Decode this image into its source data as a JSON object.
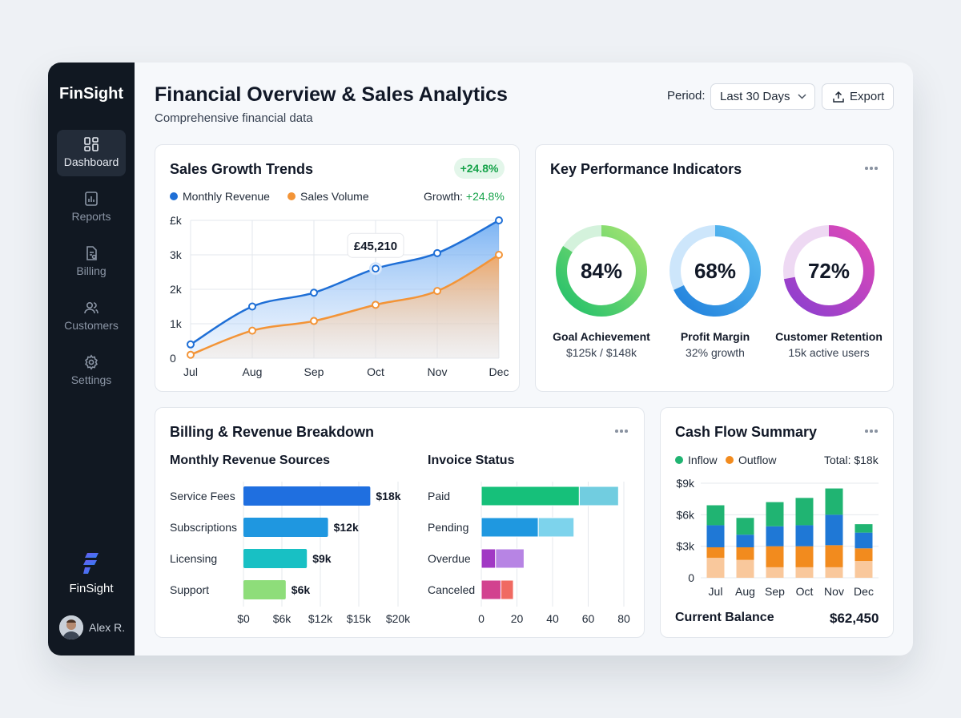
{
  "sidebar": {
    "brand": "FinSight",
    "items": [
      {
        "label": "Dashboard",
        "icon": "dashboard-icon",
        "active": true
      },
      {
        "label": "Reports",
        "icon": "reports-icon"
      },
      {
        "label": "Billing",
        "icon": "billing-icon"
      },
      {
        "label": "Customers",
        "icon": "customers-icon"
      },
      {
        "label": "Settings",
        "icon": "settings-icon"
      }
    ],
    "brand_bottom": "FinSight",
    "user_name": "Alex R."
  },
  "header": {
    "title": "Financial Overview & Sales Analytics",
    "subtitle": "Comprehensive financial data",
    "period_label": "Period:",
    "period_value": "Last 30 Days",
    "export_label": "Export"
  },
  "colors": {
    "revenue": "#1f6fd6",
    "volume": "#f39437",
    "positive": "#16a34a",
    "inflow": "#20b472",
    "outflow": "#f28b1e"
  },
  "sales_growth": {
    "title": "Sales Growth Trends",
    "badge": "+24.8%",
    "legend": [
      "Monthly Revenue",
      "Sales Volume"
    ],
    "growth_label": "Growth:",
    "growth_value": "+24.8%",
    "tooltip": "£45,210",
    "chart_data": {
      "type": "area",
      "categories": [
        "Jul",
        "Aug",
        "Sep",
        "Oct",
        "Nov",
        "Dec"
      ],
      "y_ticks": [
        "0",
        "1k",
        "2k",
        "3k",
        "£k"
      ],
      "ylim": [
        0,
        4
      ],
      "grid": true,
      "series": [
        {
          "name": "Monthly Revenue",
          "values": [
            0.4,
            1.5,
            1.9,
            2.6,
            3.05,
            4.0
          ]
        },
        {
          "name": "Sales Volume",
          "values": [
            0.1,
            0.8,
            1.08,
            1.55,
            1.95,
            3.0
          ]
        }
      ]
    }
  },
  "kpi": {
    "title": "Key Performance Indicators",
    "items": [
      {
        "value": "84%",
        "pct": 84,
        "label": "Goal Achievement",
        "sub": "$125k / $148k",
        "track": "#d4f2dc",
        "c1": "#1fbf6a",
        "c2": "#a6e572"
      },
      {
        "value": "68%",
        "pct": 68,
        "label": "Profit Margin",
        "sub": "32% growth",
        "track": "#cde6fb",
        "c1": "#1f7fdc",
        "c2": "#5ec0f2"
      },
      {
        "value": "72%",
        "pct": 72,
        "label": "Customer Retention",
        "sub": "15k active users",
        "track": "#eed9f3",
        "c1": "#8b3fcf",
        "c2": "#e049b7"
      }
    ]
  },
  "billing": {
    "title": "Billing & Revenue Breakdown",
    "sources_title": "Monthly Revenue Sources",
    "invoice_title": "Invoice Status",
    "chart_data": [
      {
        "type": "bar",
        "title": "Monthly Revenue Sources",
        "categories": [
          "Service Fees",
          "Subscriptions",
          "Licensing",
          "Support"
        ],
        "values": [
          18,
          12,
          9,
          6
        ],
        "value_labels": [
          "$18k",
          "$12k",
          "$9k",
          "$6k"
        ],
        "x_ticks": [
          "$0",
          "$6k",
          "$12k",
          "$15k",
          "$20k"
        ],
        "colors": [
          "#1f6fe0",
          "#1f97e0",
          "#18c0c4",
          "#8edd7a"
        ]
      },
      {
        "type": "bar",
        "title": "Invoice Status",
        "categories": [
          "Paid",
          "Pending",
          "Overdue",
          "Canceled"
        ],
        "series": [
          {
            "values": [
              55,
              32,
              8,
              11
            ],
            "colors": [
              "#16c07a",
              "#1f98e0",
              "#a138c4",
              "#d2428f"
            ]
          },
          {
            "values": [
              22,
              20,
              16,
              7
            ],
            "colors": [
              "#71cde0",
              "#7dd3ec",
              "#b784e4",
              "#f06a62"
            ]
          }
        ],
        "x_ticks": [
          "0",
          "20",
          "40",
          "60",
          "80"
        ],
        "xlim": [
          0,
          80
        ]
      }
    ]
  },
  "cashflow": {
    "title": "Cash Flow Summary",
    "legend": [
      "Inflow",
      "Outflow"
    ],
    "total": "Total: $18k",
    "balance_label": "Current Balance",
    "balance_value": "$62,450",
    "chart_data": {
      "type": "bar",
      "categories": [
        "Jul",
        "Aug",
        "Sep",
        "Oct",
        "Nov",
        "Dec"
      ],
      "y_ticks": [
        "0",
        "$3k",
        "$6k",
        "$9k"
      ],
      "ylim": [
        0,
        9
      ],
      "stacked": true,
      "series": [
        {
          "name": "",
          "values": [
            1.9,
            1.7,
            1.0,
            1.0,
            1.0,
            1.6
          ],
          "color": "#f9c89c"
        },
        {
          "name": "Outflow",
          "values": [
            1.0,
            1.2,
            2.0,
            2.0,
            2.1,
            1.2
          ],
          "color": "#f28b1e"
        },
        {
          "name": "",
          "values": [
            2.1,
            1.2,
            1.9,
            2.0,
            2.9,
            1.5
          ],
          "color": "#1f78d6"
        },
        {
          "name": "Inflow",
          "values": [
            1.9,
            1.6,
            2.3,
            2.6,
            2.5,
            0.8
          ],
          "color": "#20b472"
        }
      ]
    }
  }
}
